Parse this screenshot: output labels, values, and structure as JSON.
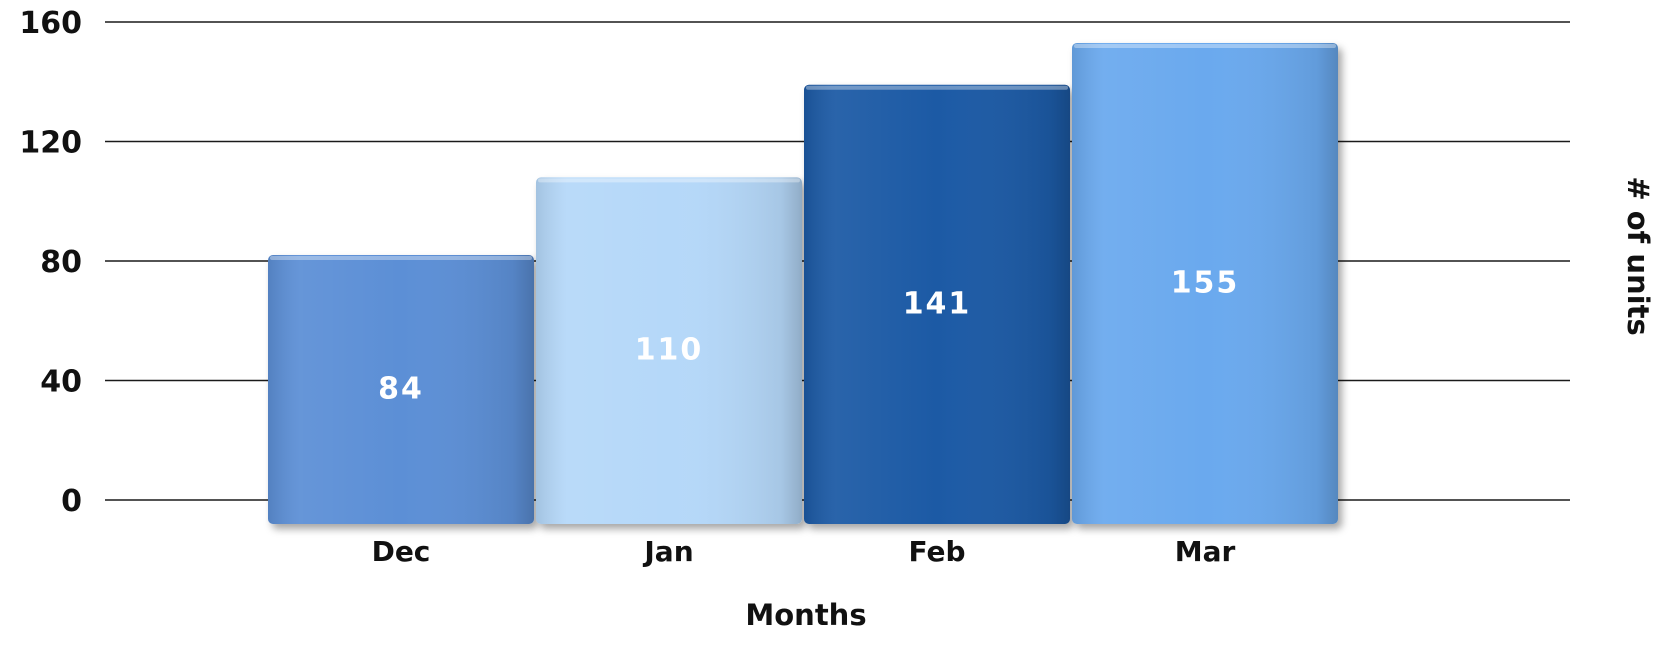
{
  "chart_data": {
    "type": "bar",
    "categories": [
      "Dec",
      "Jan",
      "Feb",
      "Mar"
    ],
    "values": [
      84,
      110,
      141,
      155
    ],
    "data_labels": [
      "84",
      "110",
      "141",
      "155"
    ],
    "xlabel": "Months",
    "ylabel": "# of units",
    "ylim": [
      0,
      160
    ],
    "yticks": [
      "0",
      "40",
      "80",
      "120",
      "160"
    ],
    "ylabel_position": "right",
    "grid": true,
    "legend": "none",
    "bar_colors": [
      "#5b8fd6",
      "#b5d8f9",
      "#1f5aa5",
      "#6aa9ee"
    ]
  }
}
